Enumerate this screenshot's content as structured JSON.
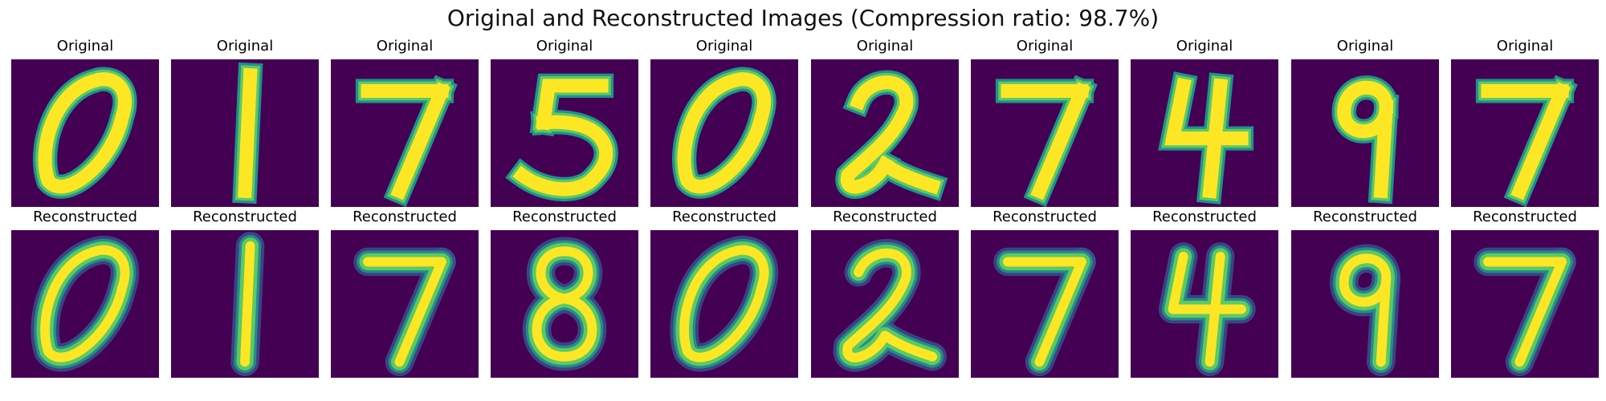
{
  "title": "Original and Reconstructed Images (Compression ratio: 98.7%)",
  "colors": {
    "background": "#440154",
    "stroke_core": "#fde725",
    "stroke_mid": "#5ec962",
    "stroke_edge": "#21918c",
    "stroke_blur": "#3b528b"
  },
  "rows": [
    {
      "label": "Original",
      "kind": "original"
    },
    {
      "label": "Reconstructed",
      "kind": "reconstructed"
    }
  ],
  "digits": [
    {
      "digit": "0",
      "icon": "digit-0-icon"
    },
    {
      "digit": "1",
      "icon": "digit-1-icon"
    },
    {
      "digit": "7",
      "icon": "digit-7-icon"
    },
    {
      "digit": "5",
      "icon": "digit-5-icon",
      "reconstructed_as": "8"
    },
    {
      "digit": "0",
      "icon": "digit-0-icon"
    },
    {
      "digit": "2",
      "icon": "digit-2-icon"
    },
    {
      "digit": "7",
      "icon": "digit-7-icon"
    },
    {
      "digit": "4",
      "icon": "digit-4-icon"
    },
    {
      "digit": "9",
      "icon": "digit-9-icon"
    },
    {
      "digit": "7",
      "icon": "digit-7-icon"
    }
  ]
}
